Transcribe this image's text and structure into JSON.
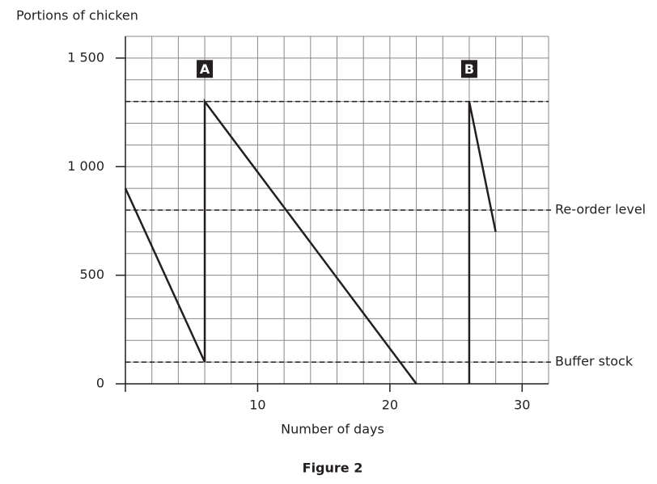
{
  "chart_data": {
    "type": "line",
    "title": "Figure 2",
    "y_label": "Portions of chicken",
    "x_label": "Number of days",
    "x": [
      0,
      6,
      6,
      22,
      null,
      26,
      26,
      28
    ],
    "values": [
      900,
      100,
      1300,
      0,
      null,
      0,
      1300,
      700
    ],
    "color": "#231f20",
    "xlim": [
      0,
      32
    ],
    "ylim": [
      0,
      1600
    ],
    "xticks": [
      0,
      10,
      20,
      30
    ],
    "yticks": [
      0,
      500,
      {
        "value": 1000,
        "label": "1 000"
      },
      {
        "value": 1500,
        "label": "1 500"
      }
    ],
    "grid": {
      "x_step": 2,
      "y_step": 100
    },
    "reference_lines": [
      {
        "value": 1300
      },
      {
        "value": 800,
        "label": "Re-order level"
      },
      {
        "value": 100,
        "label": "Buffer stock"
      }
    ],
    "annotations": [
      {
        "text": "A",
        "x": 6,
        "y": 1450
      },
      {
        "text": "B",
        "x": 26,
        "y": 1450
      }
    ]
  }
}
